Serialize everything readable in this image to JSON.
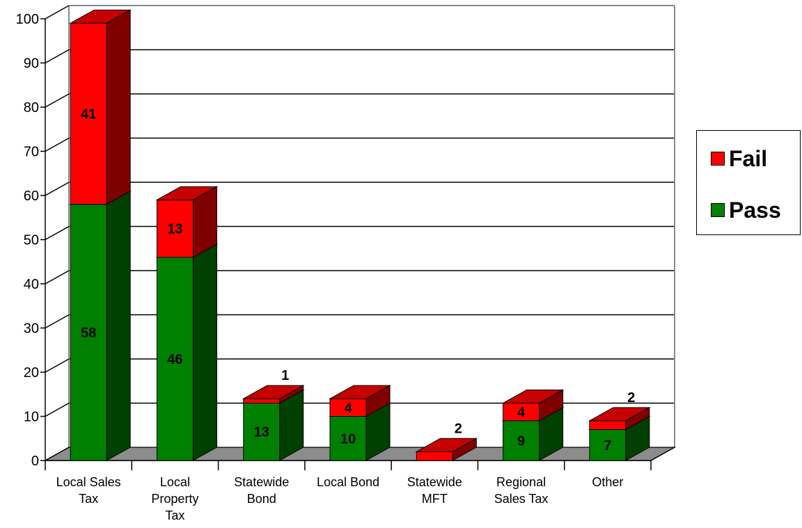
{
  "chart_data": {
    "type": "bar",
    "stacked": true,
    "three_d": true,
    "categories": [
      [
        "Local Sales",
        "Tax"
      ],
      [
        "Local",
        "Property",
        "Tax"
      ],
      [
        "Statewide",
        "Bond"
      ],
      [
        "Local Bond"
      ],
      [
        "Statewide",
        "MFT"
      ],
      [
        "Regional",
        "Sales Tax"
      ],
      [
        "Other"
      ]
    ],
    "series": [
      {
        "name": "Pass",
        "color": "#008000",
        "values": [
          58,
          46,
          13,
          10,
          0,
          9,
          7
        ]
      },
      {
        "name": "Fail",
        "color": "#ff0000",
        "values": [
          41,
          13,
          1,
          4,
          2,
          4,
          2
        ]
      }
    ],
    "ylim": [
      0,
      100
    ],
    "yticks": [
      0,
      10,
      20,
      30,
      40,
      50,
      60,
      70,
      80,
      90,
      100
    ],
    "grid": true,
    "legend_position": "right"
  }
}
